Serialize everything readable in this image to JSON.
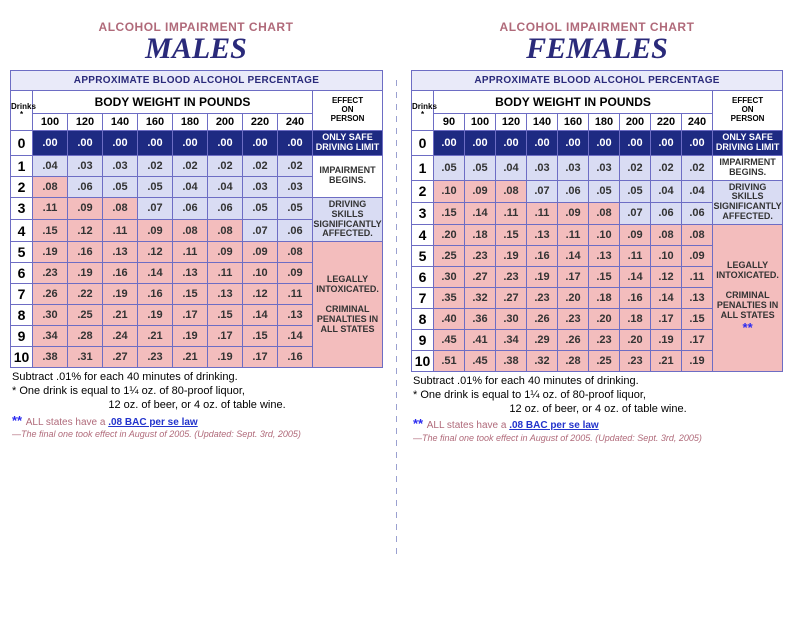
{
  "colors": {
    "navy": "#1e2a82",
    "lilac": "#d9dcf3",
    "pink": "#f3bdbd",
    "white": "#ffffff",
    "titlePink": "#b06a7a",
    "titleBlue": "#2a2a7a"
  },
  "thresholds": {
    "navyBelow": 0.005,
    "lilacBelow": 0.08
  },
  "effects": {
    "0": "ONLY SAFE DRIVING LIMIT",
    "1": "IMPAIRMENT BEGINS.",
    "2": "DRIVING SKILLS SIGNIFICANTLY AFFECTED.",
    "3": "LEGALLY INTOXICATED.",
    "3b": "CRIMINAL PENALTIES IN ALL STATES"
  },
  "effectAsterisk": "**",
  "labels": {
    "chartTitle": "ALCOHOL IMPAIRMENT CHART",
    "approx": "APPROXIMATE BLOOD ALCOHOL PERCENTAGE",
    "drinks": "Drinks *",
    "weight": "BODY WEIGHT IN POUNDS",
    "effect": "EFFECT ON PERSON"
  },
  "footnotes": {
    "line1": "Subtract .01% for each 40 minutes of drinking.",
    "line2": "* One drink is equal to 1¼ oz. of 80-proof liquor,",
    "line3": "12 oz. of beer, or 4 oz. of table wine.",
    "lawPre": "ALL states have a ",
    "lawLink": ".08 BAC per se law",
    "hist": "—The final one took effect in August of 2005. (Updated: Sept. 3rd, 2005)"
  },
  "male": {
    "gender": "MALES",
    "weights": [
      100,
      120,
      140,
      160,
      180,
      200,
      220,
      240
    ],
    "drinks": [
      0,
      1,
      2,
      3,
      4,
      5,
      6,
      7,
      8,
      9,
      10
    ],
    "rows": [
      [
        ".00",
        ".00",
        ".00",
        ".00",
        ".00",
        ".00",
        ".00",
        ".00"
      ],
      [
        ".04",
        ".03",
        ".03",
        ".02",
        ".02",
        ".02",
        ".02",
        ".02"
      ],
      [
        ".08",
        ".06",
        ".05",
        ".05",
        ".04",
        ".04",
        ".03",
        ".03"
      ],
      [
        ".11",
        ".09",
        ".08",
        ".07",
        ".06",
        ".06",
        ".05",
        ".05"
      ],
      [
        ".15",
        ".12",
        ".11",
        ".09",
        ".08",
        ".08",
        ".07",
        ".06"
      ],
      [
        ".19",
        ".16",
        ".13",
        ".12",
        ".11",
        ".09",
        ".09",
        ".08"
      ],
      [
        ".23",
        ".19",
        ".16",
        ".14",
        ".13",
        ".11",
        ".10",
        ".09"
      ],
      [
        ".26",
        ".22",
        ".19",
        ".16",
        ".15",
        ".13",
        ".12",
        ".11"
      ],
      [
        ".30",
        ".25",
        ".21",
        ".19",
        ".17",
        ".15",
        ".14",
        ".13"
      ],
      [
        ".34",
        ".28",
        ".24",
        ".21",
        ".19",
        ".17",
        ".15",
        ".14"
      ],
      [
        ".38",
        ".31",
        ".27",
        ".23",
        ".21",
        ".19",
        ".17",
        ".16"
      ]
    ],
    "effectSpans": [
      {
        "key": "0",
        "rows": 1,
        "cls": "eff-navy"
      },
      {
        "key": "1",
        "rows": 2,
        "cls": "eff-white"
      },
      {
        "key": "2",
        "rows": 2,
        "cls": "eff-lilac"
      },
      {
        "key": "3",
        "rows": 6,
        "cls": "eff-pink",
        "withAst": false
      }
    ]
  },
  "female": {
    "gender": "FEMALES",
    "weights": [
      90,
      100,
      120,
      140,
      160,
      180,
      200,
      220,
      240
    ],
    "drinks": [
      0,
      1,
      2,
      3,
      4,
      5,
      6,
      7,
      8,
      9,
      10
    ],
    "rows": [
      [
        ".00",
        ".00",
        ".00",
        ".00",
        ".00",
        ".00",
        ".00",
        ".00",
        ".00"
      ],
      [
        ".05",
        ".05",
        ".04",
        ".03",
        ".03",
        ".03",
        ".02",
        ".02",
        ".02"
      ],
      [
        ".10",
        ".09",
        ".08",
        ".07",
        ".06",
        ".05",
        ".05",
        ".04",
        ".04"
      ],
      [
        ".15",
        ".14",
        ".11",
        ".11",
        ".09",
        ".08",
        ".07",
        ".06",
        ".06"
      ],
      [
        ".20",
        ".18",
        ".15",
        ".13",
        ".11",
        ".10",
        ".09",
        ".08",
        ".08"
      ],
      [
        ".25",
        ".23",
        ".19",
        ".16",
        ".14",
        ".13",
        ".11",
        ".10",
        ".09"
      ],
      [
        ".30",
        ".27",
        ".23",
        ".19",
        ".17",
        ".15",
        ".14",
        ".12",
        ".11"
      ],
      [
        ".35",
        ".32",
        ".27",
        ".23",
        ".20",
        ".18",
        ".16",
        ".14",
        ".13"
      ],
      [
        ".40",
        ".36",
        ".30",
        ".26",
        ".23",
        ".20",
        ".18",
        ".17",
        ".15"
      ],
      [
        ".45",
        ".41",
        ".34",
        ".29",
        ".26",
        ".23",
        ".20",
        ".19",
        ".17"
      ],
      [
        ".51",
        ".45",
        ".38",
        ".32",
        ".28",
        ".25",
        ".23",
        ".21",
        ".19"
      ]
    ],
    "effectSpans": [
      {
        "key": "0",
        "rows": 1,
        "cls": "eff-navy"
      },
      {
        "key": "1",
        "rows": 1,
        "cls": "eff-white"
      },
      {
        "key": "2",
        "rows": 2,
        "cls": "eff-lilac"
      },
      {
        "key": "3",
        "rows": 7,
        "cls": "eff-pink",
        "withAst": true
      }
    ]
  }
}
